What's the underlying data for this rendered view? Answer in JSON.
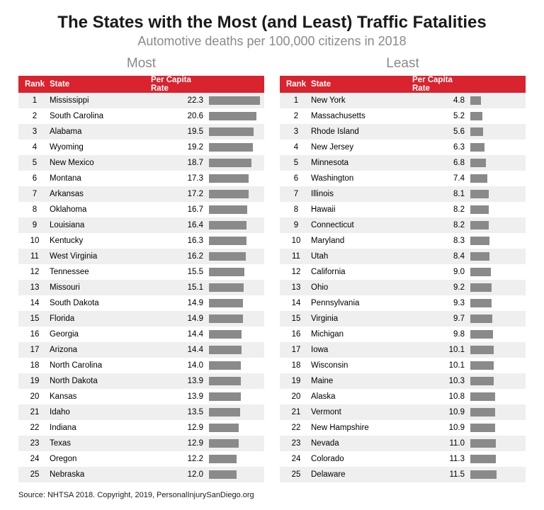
{
  "title": "The States with the Most (and Least) Traffic Fatalities",
  "subtitle": "Automotive deaths per 100,000 citizens in 2018",
  "footer": "Source: NHTSA 2018. Copyright, 2019, PersonalInjurySanDiego.org",
  "colors": {
    "header_bg": "#d9232e",
    "header_text": "#ffffff",
    "row_alt_a": "#efefef",
    "row_alt_b": "#ffffff",
    "bar_fill": "#8a8a8a",
    "title_color": "#1a1a1a",
    "subtitle_color": "#8a8a8a",
    "text_color": "#1a1a1a"
  },
  "columns": {
    "rank": "Rank",
    "state": "State",
    "rate": "Per Capita Rate"
  },
  "bar_scale_max": 22.3,
  "panels": [
    {
      "heading": "Most",
      "rows": [
        {
          "rank": 1,
          "state": "Mississippi",
          "rate": 22.3
        },
        {
          "rank": 2,
          "state": "South Carolina",
          "rate": 20.6
        },
        {
          "rank": 3,
          "state": "Alabama",
          "rate": 19.5
        },
        {
          "rank": 4,
          "state": "Wyoming",
          "rate": 19.2
        },
        {
          "rank": 5,
          "state": "New Mexico",
          "rate": 18.7
        },
        {
          "rank": 6,
          "state": "Montana",
          "rate": 17.3
        },
        {
          "rank": 7,
          "state": "Arkansas",
          "rate": 17.2
        },
        {
          "rank": 8,
          "state": "Oklahoma",
          "rate": 16.7
        },
        {
          "rank": 9,
          "state": "Louisiana",
          "rate": 16.4
        },
        {
          "rank": 10,
          "state": "Kentucky",
          "rate": 16.3
        },
        {
          "rank": 11,
          "state": "West Virginia",
          "rate": 16.2
        },
        {
          "rank": 12,
          "state": "Tennessee",
          "rate": 15.5
        },
        {
          "rank": 13,
          "state": "Missouri",
          "rate": 15.1
        },
        {
          "rank": 14,
          "state": "South Dakota",
          "rate": 14.9
        },
        {
          "rank": 15,
          "state": "Florida",
          "rate": 14.9
        },
        {
          "rank": 16,
          "state": "Georgia",
          "rate": 14.4
        },
        {
          "rank": 17,
          "state": "Arizona",
          "rate": 14.4
        },
        {
          "rank": 18,
          "state": "North Carolina",
          "rate": 14.0
        },
        {
          "rank": 19,
          "state": "North Dakota",
          "rate": 13.9
        },
        {
          "rank": 20,
          "state": "Kansas",
          "rate": 13.9
        },
        {
          "rank": 21,
          "state": "Idaho",
          "rate": 13.5
        },
        {
          "rank": 22,
          "state": "Indiana",
          "rate": 12.9
        },
        {
          "rank": 23,
          "state": "Texas",
          "rate": 12.9
        },
        {
          "rank": 24,
          "state": "Oregon",
          "rate": 12.2
        },
        {
          "rank": 25,
          "state": "Nebraska",
          "rate": 12.0
        }
      ]
    },
    {
      "heading": "Least",
      "rows": [
        {
          "rank": 1,
          "state": "New York",
          "rate": 4.8
        },
        {
          "rank": 2,
          "state": "Massachusetts",
          "rate": 5.2
        },
        {
          "rank": 3,
          "state": "Rhode Island",
          "rate": 5.6
        },
        {
          "rank": 4,
          "state": "New Jersey",
          "rate": 6.3
        },
        {
          "rank": 5,
          "state": "Minnesota",
          "rate": 6.8
        },
        {
          "rank": 6,
          "state": "Washington",
          "rate": 7.4
        },
        {
          "rank": 7,
          "state": "Illinois",
          "rate": 8.1
        },
        {
          "rank": 8,
          "state": "Hawaii",
          "rate": 8.2
        },
        {
          "rank": 9,
          "state": "Connecticut",
          "rate": 8.2
        },
        {
          "rank": 10,
          "state": "Maryland",
          "rate": 8.3
        },
        {
          "rank": 11,
          "state": "Utah",
          "rate": 8.4
        },
        {
          "rank": 12,
          "state": "California",
          "rate": 9.0
        },
        {
          "rank": 13,
          "state": "Ohio",
          "rate": 9.2
        },
        {
          "rank": 14,
          "state": "Pennsylvania",
          "rate": 9.3
        },
        {
          "rank": 15,
          "state": "Virginia",
          "rate": 9.7
        },
        {
          "rank": 16,
          "state": "Michigan",
          "rate": 9.8
        },
        {
          "rank": 17,
          "state": "Iowa",
          "rate": 10.1
        },
        {
          "rank": 18,
          "state": "Wisconsin",
          "rate": 10.1
        },
        {
          "rank": 19,
          "state": "Maine",
          "rate": 10.3
        },
        {
          "rank": 20,
          "state": "Alaska",
          "rate": 10.8
        },
        {
          "rank": 21,
          "state": "Vermont",
          "rate": 10.9
        },
        {
          "rank": 22,
          "state": "New Hampshire",
          "rate": 10.9
        },
        {
          "rank": 23,
          "state": "Nevada",
          "rate": 11.0
        },
        {
          "rank": 24,
          "state": "Colorado",
          "rate": 11.3
        },
        {
          "rank": 25,
          "state": "Delaware",
          "rate": 11.5
        }
      ]
    }
  ]
}
